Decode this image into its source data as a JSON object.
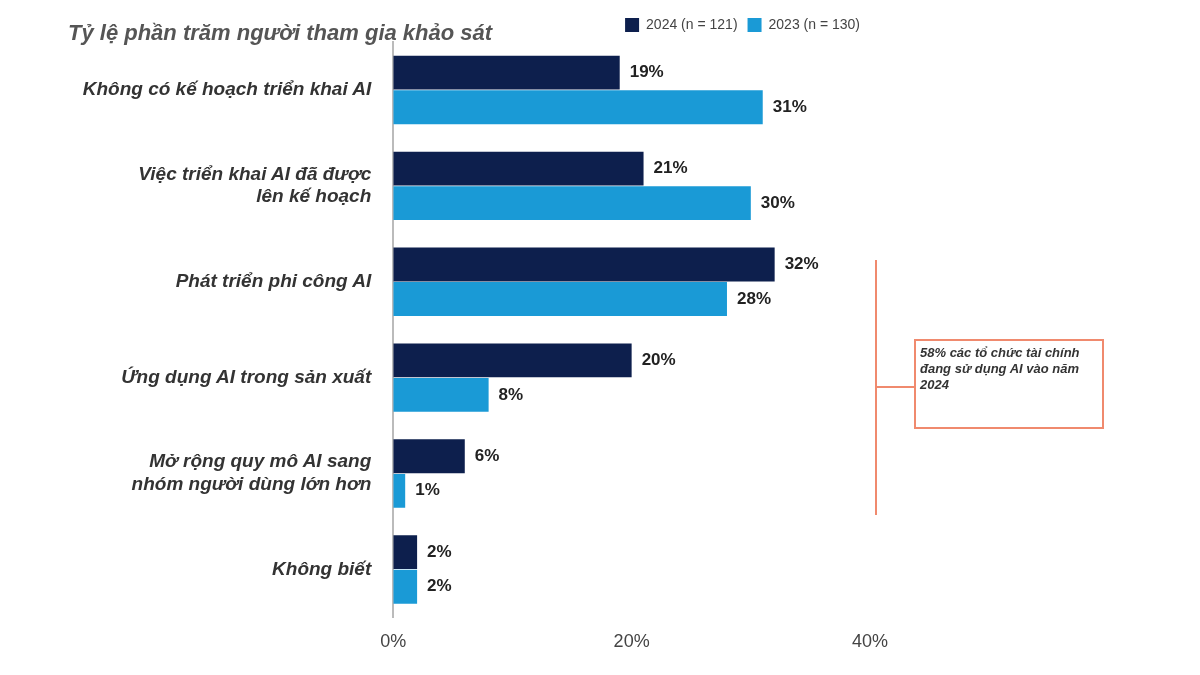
{
  "chart_data": {
    "type": "bar",
    "orientation": "horizontal",
    "title": "Tỷ lệ phần trăm người tham gia khảo sát",
    "categories": [
      "Không có kế hoạch triển khai AI",
      "Việc triển khai AI đã được lên kế hoạch",
      "Phát triển phi công AI",
      "Ứng dụng AI trong sản xuất",
      "Mở rộng quy mô AI sang nhóm người dùng lớn hơn",
      "Không biết"
    ],
    "series": [
      {
        "name": "2024 (n = 121)",
        "color": "#0d1f4d",
        "values": [
          19,
          21,
          32,
          20,
          6,
          2
        ],
        "value_labels": [
          "19%",
          "21%",
          "32%",
          "20%",
          "6%",
          "2%"
        ]
      },
      {
        "name": "2023 (n = 130)",
        "color": "#1a9ad6",
        "values": [
          31,
          30,
          28,
          8,
          1,
          2
        ],
        "value_labels": [
          "31%",
          "30%",
          "28%",
          "8%",
          "1%",
          "2%"
        ]
      }
    ],
    "xlim": [
      0,
      40
    ],
    "xticks": [
      {
        "value": 0,
        "label": "0%"
      },
      {
        "value": 20,
        "label": "20%"
      },
      {
        "value": 40,
        "label": "40%"
      }
    ],
    "grid": false,
    "legend": "top right",
    "annotations": [
      "58% các tổ chức tài chính đang sử dụng AI vào năm 2024"
    ]
  }
}
